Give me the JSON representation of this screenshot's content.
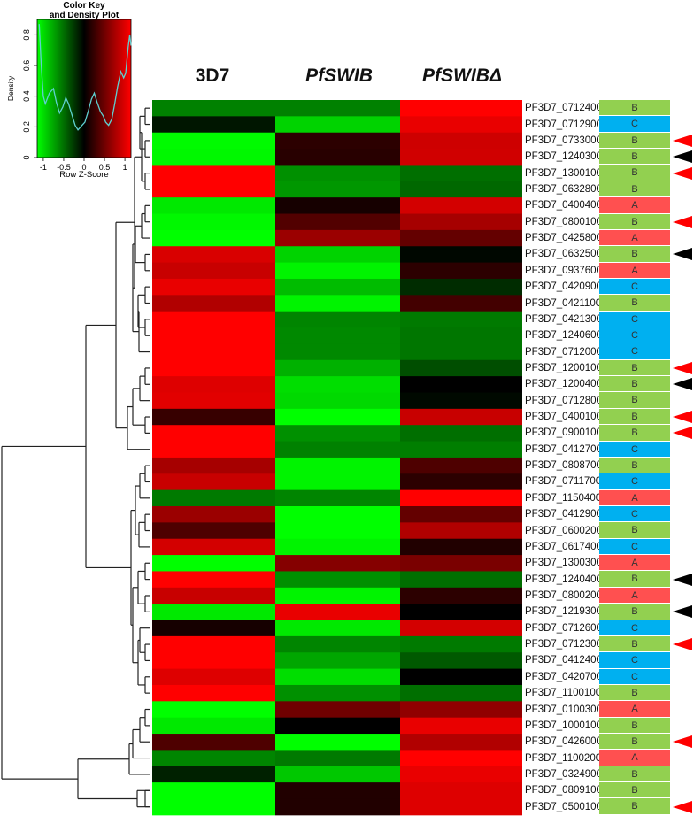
{
  "chart_data": {
    "type": "heatmap",
    "columns": [
      "3D7",
      "PfSWIB",
      "PfSWIBΔ"
    ],
    "column_styles": [
      "normal",
      "italic",
      "italic"
    ],
    "color_scale": {
      "low": "#00ff00",
      "mid": "#000000",
      "high": "#ff0000",
      "range": [
        -1.15,
        1.15
      ]
    },
    "group_colors": {
      "A": "#ff5050",
      "B": "#92d050",
      "C": "#00b0f0"
    },
    "arrow_colors": {
      "red": "#ff0000",
      "black": "#000000"
    },
    "rows": [
      {
        "gene": "PF3D7_0712400",
        "group": "B",
        "arrow": null,
        "values": [
          -0.58,
          -0.58,
          1.15
        ]
      },
      {
        "gene": "PF3D7_0712900",
        "group": "C",
        "arrow": null,
        "values": [
          -0.1,
          -0.95,
          1.05
        ]
      },
      {
        "gene": "PF3D7_0733000",
        "group": "B",
        "arrow": "red",
        "values": [
          -1.13,
          0.2,
          0.93
        ]
      },
      {
        "gene": "PF3D7_1240300",
        "group": "B",
        "arrow": "black",
        "values": [
          -1.12,
          0.18,
          0.94
        ]
      },
      {
        "gene": "PF3D7_1300100",
        "group": "B",
        "arrow": "red",
        "values": [
          1.15,
          -0.65,
          -0.5
        ]
      },
      {
        "gene": "PF3D7_0632800",
        "group": "B",
        "arrow": null,
        "values": [
          1.15,
          -0.68,
          -0.47
        ]
      },
      {
        "gene": "PF3D7_0400400",
        "group": "A",
        "arrow": null,
        "values": [
          -1.05,
          0.1,
          0.95
        ]
      },
      {
        "gene": "PF3D7_0800100",
        "group": "B",
        "arrow": "red",
        "values": [
          -1.12,
          0.37,
          0.75
        ]
      },
      {
        "gene": "PF3D7_0425800",
        "group": "A",
        "arrow": null,
        "values": [
          -1.15,
          0.7,
          0.45
        ]
      },
      {
        "gene": "PF3D7_0632500",
        "group": "B",
        "arrow": "black",
        "values": [
          0.98,
          -0.95,
          -0.03
        ]
      },
      {
        "gene": "PF3D7_0937600",
        "group": "A",
        "arrow": null,
        "values": [
          0.9,
          -1.1,
          0.2
        ]
      },
      {
        "gene": "PF3D7_0420900",
        "group": "C",
        "arrow": null,
        "values": [
          1.05,
          -0.85,
          -0.2
        ]
      },
      {
        "gene": "PF3D7_0421100",
        "group": "B",
        "arrow": null,
        "values": [
          0.8,
          -1.1,
          0.3
        ]
      },
      {
        "gene": "PF3D7_0421300",
        "group": "C",
        "arrow": null,
        "values": [
          1.15,
          -0.6,
          -0.55
        ]
      },
      {
        "gene": "PF3D7_1240600",
        "group": "C",
        "arrow": null,
        "values": [
          1.15,
          -0.62,
          -0.53
        ]
      },
      {
        "gene": "PF3D7_0712000",
        "group": "C",
        "arrow": null,
        "values": [
          1.15,
          -0.62,
          -0.53
        ]
      },
      {
        "gene": "PF3D7_1200100",
        "group": "B",
        "arrow": "red",
        "values": [
          1.15,
          -0.8,
          -0.35
        ]
      },
      {
        "gene": "PF3D7_1200400",
        "group": "B",
        "arrow": "black",
        "values": [
          1.0,
          -1.0,
          0.0
        ]
      },
      {
        "gene": "PF3D7_0712800",
        "group": "B",
        "arrow": null,
        "values": [
          1.02,
          -0.98,
          -0.04
        ]
      },
      {
        "gene": "PF3D7_0400100",
        "group": "B",
        "arrow": "red",
        "values": [
          0.25,
          -1.15,
          0.9
        ]
      },
      {
        "gene": "PF3D7_0900100",
        "group": "B",
        "arrow": "red",
        "values": [
          1.15,
          -0.65,
          -0.5
        ]
      },
      {
        "gene": "PF3D7_0412700",
        "group": "C",
        "arrow": null,
        "values": [
          1.15,
          -0.58,
          -0.57
        ]
      },
      {
        "gene": "PF3D7_0808700",
        "group": "B",
        "arrow": null,
        "values": [
          0.75,
          -1.1,
          0.35
        ]
      },
      {
        "gene": "PF3D7_0711700",
        "group": "C",
        "arrow": null,
        "values": [
          0.9,
          -1.1,
          0.2
        ]
      },
      {
        "gene": "PF3D7_1150400",
        "group": "A",
        "arrow": null,
        "values": [
          -0.55,
          -0.6,
          1.15
        ]
      },
      {
        "gene": "PF3D7_0412900",
        "group": "C",
        "arrow": null,
        "values": [
          0.7,
          -1.15,
          0.45
        ]
      },
      {
        "gene": "PF3D7_0600200",
        "group": "B",
        "arrow": null,
        "values": [
          0.35,
          -1.15,
          0.8
        ]
      },
      {
        "gene": "PF3D7_0617400",
        "group": "C",
        "arrow": null,
        "values": [
          0.95,
          -1.1,
          0.15
        ]
      },
      {
        "gene": "PF3D7_1300300",
        "group": "A",
        "arrow": null,
        "values": [
          -1.15,
          0.6,
          0.55
        ]
      },
      {
        "gene": "PF3D7_1240400",
        "group": "B",
        "arrow": "black",
        "values": [
          1.15,
          -0.65,
          -0.5
        ]
      },
      {
        "gene": "PF3D7_0800200",
        "group": "A",
        "arrow": null,
        "values": [
          0.9,
          -1.1,
          0.2
        ]
      },
      {
        "gene": "PF3D7_1219300",
        "group": "B",
        "arrow": "black",
        "values": [
          -1.05,
          1.05,
          0.0
        ]
      },
      {
        "gene": "PF3D7_0712600",
        "group": "C",
        "arrow": null,
        "values": [
          0.1,
          -1.05,
          0.95
        ]
      },
      {
        "gene": "PF3D7_0712300",
        "group": "B",
        "arrow": "red",
        "values": [
          1.15,
          -0.6,
          -0.55
        ]
      },
      {
        "gene": "PF3D7_0412400",
        "group": "C",
        "arrow": null,
        "values": [
          1.15,
          -0.75,
          -0.4
        ]
      },
      {
        "gene": "PF3D7_0420700",
        "group": "C",
        "arrow": null,
        "values": [
          1.0,
          -1.0,
          0.0
        ]
      },
      {
        "gene": "PF3D7_1100100",
        "group": "B",
        "arrow": null,
        "values": [
          1.15,
          -0.65,
          -0.5
        ]
      },
      {
        "gene": "PF3D7_0100300",
        "group": "A",
        "arrow": null,
        "values": [
          -1.15,
          0.5,
          0.65
        ]
      },
      {
        "gene": "PF3D7_1000100",
        "group": "B",
        "arrow": null,
        "values": [
          -1.05,
          0.0,
          1.05
        ]
      },
      {
        "gene": "PF3D7_0426000",
        "group": "B",
        "arrow": "red",
        "values": [
          0.35,
          -1.15,
          0.8
        ]
      },
      {
        "gene": "PF3D7_1100200",
        "group": "A",
        "arrow": null,
        "values": [
          -0.6,
          -0.55,
          1.15
        ]
      },
      {
        "gene": "PF3D7_0324900",
        "group": "B",
        "arrow": null,
        "values": [
          -0.15,
          -0.9,
          1.05
        ]
      },
      {
        "gene": "PF3D7_0809100",
        "group": "B",
        "arrow": null,
        "values": [
          -1.15,
          0.15,
          1.0
        ]
      },
      {
        "gene": "PF3D7_0500100",
        "group": "B",
        "arrow": "red",
        "values": [
          -1.15,
          0.15,
          1.0
        ]
      }
    ],
    "row_dendrogram": true,
    "color_key": {
      "title": "Color Key",
      "subtitle": "and Density Plot",
      "xlabel": "Row Z-Score",
      "ylabel": "Density",
      "xlim": [
        -1.15,
        1.15
      ],
      "ylim": [
        0,
        0.9
      ],
      "xticks": [
        "-1",
        "-0.5",
        "0",
        "0.5",
        "1"
      ],
      "yticks": [
        "0",
        "0.2",
        "0.4",
        "0.6",
        "0.8"
      ],
      "density_color": "#5fd0d0",
      "density": [
        [
          -1.1,
          0.87
        ],
        [
          -1.05,
          0.6
        ],
        [
          -1.0,
          0.4
        ],
        [
          -0.95,
          0.35
        ],
        [
          -0.85,
          0.42
        ],
        [
          -0.75,
          0.45
        ],
        [
          -0.68,
          0.36
        ],
        [
          -0.6,
          0.29
        ],
        [
          -0.52,
          0.33
        ],
        [
          -0.45,
          0.39
        ],
        [
          -0.38,
          0.35
        ],
        [
          -0.3,
          0.28
        ],
        [
          -0.22,
          0.21
        ],
        [
          -0.15,
          0.18
        ],
        [
          -0.05,
          0.21
        ],
        [
          0.02,
          0.23
        ],
        [
          0.1,
          0.3
        ],
        [
          0.18,
          0.38
        ],
        [
          0.25,
          0.42
        ],
        [
          0.32,
          0.36
        ],
        [
          0.4,
          0.3
        ],
        [
          0.47,
          0.27
        ],
        [
          0.53,
          0.23
        ],
        [
          0.6,
          0.21
        ],
        [
          0.68,
          0.25
        ],
        [
          0.75,
          0.35
        ],
        [
          0.82,
          0.46
        ],
        [
          0.9,
          0.56
        ],
        [
          0.97,
          0.52
        ],
        [
          1.02,
          0.55
        ],
        [
          1.08,
          0.72
        ],
        [
          1.12,
          0.8
        ],
        [
          1.15,
          0.73
        ]
      ]
    }
  }
}
